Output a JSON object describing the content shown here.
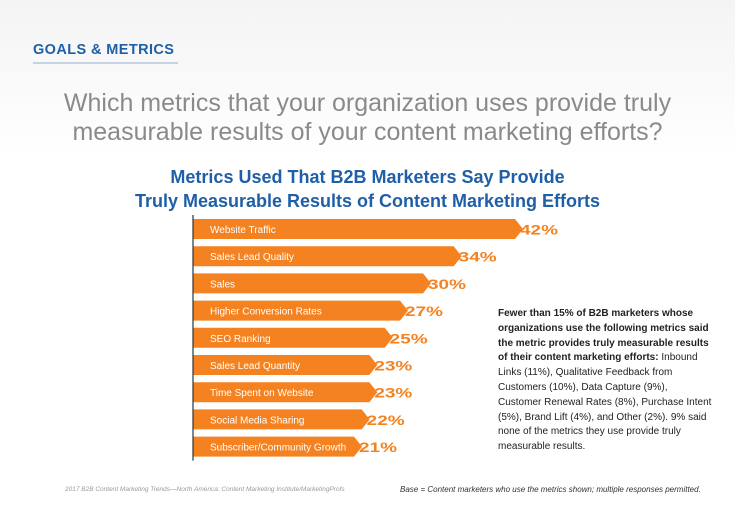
{
  "section_label": "GOALS & METRICS",
  "question_line1": "Which metrics that your organization uses provide truly",
  "question_line2": "measurable results of your content marketing efforts?",
  "colors": {
    "bar": "#f58220",
    "blue": "#1f5fa8",
    "gray": "#8a8a8a"
  },
  "chart_data": {
    "type": "bar",
    "orientation": "horizontal",
    "title_line1": "Metrics Used That B2B Marketers Say Provide",
    "title_line2": "Truly Measurable Results of Content Marketing Efforts",
    "categories": [
      "Website Traffic",
      "Sales Lead Quality",
      "Sales",
      "Higher Conversion Rates",
      "SEO Ranking",
      "Sales Lead Quantity",
      "Time Spent on Website",
      "Social Media Sharing",
      "Subscriber/Community Growth"
    ],
    "values": [
      42,
      34,
      30,
      27,
      25,
      23,
      23,
      22,
      21
    ],
    "value_labels": [
      "42%",
      "34%",
      "30%",
      "27%",
      "25%",
      "23%",
      "23%",
      "22%",
      "21%"
    ],
    "xlim": [
      0,
      42
    ],
    "grid": false
  },
  "sidenote": {
    "bold_text": "Fewer than 15% of B2B marketers whose organizations use the following metrics said the metric provides truly measurable results of their content marketing efforts:",
    "text": "Inbound Links (11%), Qualitative Feedback from Customers (10%), Data Capture (9%), Customer Renewal Rates (8%), Purchase Intent (5%), Brand Lift (4%), and Other (2%). 9% said none of the metrics they use provide truly measurable results."
  },
  "footer_source": "2017 B2B Content Marketing Trends—North America: Content Marketing Institute/MarketingProfs",
  "footer_base": "Base = Content marketers who use the metrics shown; multiple responses permitted."
}
